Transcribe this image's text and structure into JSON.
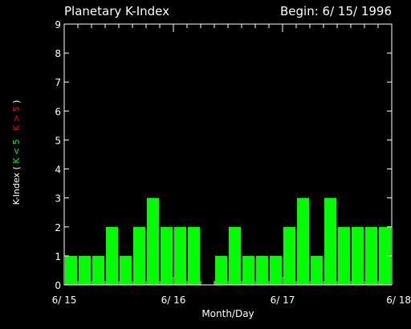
{
  "chart_data": {
    "type": "bar",
    "title": "Planetary K-Index",
    "begin_label": "Begin: 6/ 15/ 1996",
    "xlabel": "Month/Day",
    "ylabel": {
      "prefix": "K-Index",
      "open": "(",
      "low_part": "K < 5",
      "high_part": "K > 5",
      "close": ")"
    },
    "ylim": [
      0,
      9
    ],
    "yticks": [
      0,
      1,
      2,
      3,
      4,
      5,
      6,
      7,
      8,
      9
    ],
    "xticks": [
      "6/ 15",
      "6/ 16",
      "6/ 17",
      "6/ 18"
    ],
    "values": [
      1,
      1,
      1,
      2,
      1,
      2,
      3,
      2,
      2,
      2,
      0,
      1,
      2,
      1,
      1,
      1,
      2,
      3,
      1,
      3,
      2,
      2,
      2,
      2
    ],
    "bar_color": "#00ff00",
    "high_color": "#ff0000",
    "low_color": "#00ff00",
    "background": "#000000",
    "foreground": "#ffffff"
  }
}
